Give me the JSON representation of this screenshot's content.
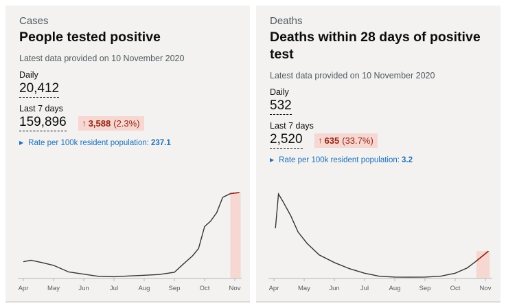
{
  "cards": [
    {
      "category": "Cases",
      "title": "People tested positive",
      "updated": "Latest data provided on 10 November 2020",
      "daily_label": "Daily",
      "daily_value": "20,412",
      "weekly_label": "Last 7 days",
      "weekly_value": "159,896",
      "change_arrow": "↑",
      "change_value": "3,588",
      "change_percent": "(2.3%)",
      "rate_label": "Rate per 100k resident population:",
      "rate_value": "237.1"
    },
    {
      "category": "Deaths",
      "title": "Deaths within 28 days of positive test",
      "updated": "Latest data provided on 10 November 2020",
      "daily_label": "Daily",
      "daily_value": "532",
      "weekly_label": "Last 7 days",
      "weekly_value": "2,520",
      "change_arrow": "↑",
      "change_value": "635",
      "change_percent": "(33.7%)",
      "rate_label": "Rate per 100k resident population:",
      "rate_value": "3.2"
    }
  ],
  "colors": {
    "card_bg": "#f3f2f1",
    "line": "#333333",
    "highlight_fill": "#f6d7d2",
    "highlight_line": "#942514",
    "link": "#1d70b8"
  },
  "chart_data": [
    {
      "type": "line",
      "title": "People tested positive",
      "x": [
        "Apr",
        "Apr",
        "Apr",
        "May",
        "May",
        "Jun",
        "Jun",
        "Jul",
        "Jul",
        "Aug",
        "Aug",
        "Sep",
        "Sep",
        "Sep",
        "Oct",
        "Oct",
        "Oct",
        "Oct",
        "Oct",
        "Nov",
        "Nov"
      ],
      "x_index": [
        0,
        0.25,
        0.6,
        1,
        1.5,
        2,
        2.5,
        3,
        3.5,
        4,
        4.5,
        5,
        5.3,
        5.6,
        5.8,
        6.0,
        6.2,
        6.4,
        6.6,
        6.85,
        7.15
      ],
      "values": [
        4400,
        4800,
        4200,
        3400,
        1600,
        1000,
        400,
        300,
        500,
        700,
        900,
        1500,
        3800,
        6000,
        8000,
        14000,
        15500,
        17800,
        22000,
        23000,
        23300
      ],
      "ylim": [
        0,
        25000
      ],
      "tick_labels": [
        "Apr",
        "May",
        "Jun",
        "Jul",
        "Aug",
        "Sep",
        "Oct",
        "Nov"
      ],
      "highlight_last_days": 7,
      "grid": false
    },
    {
      "type": "line",
      "title": "Deaths within 28 days of positive test",
      "x": [
        "Apr",
        "Apr",
        "Apr",
        "Apr",
        "May",
        "May",
        "May",
        "Jun",
        "Jun",
        "Jul",
        "Jul",
        "Aug",
        "Aug",
        "Sep",
        "Sep",
        "Oct",
        "Oct",
        "Oct",
        "Nov"
      ],
      "x_index": [
        0.05,
        0.15,
        0.3,
        0.55,
        0.8,
        1.1,
        1.5,
        2.0,
        2.5,
        3.0,
        3.5,
        4.0,
        4.5,
        5.0,
        5.5,
        6.0,
        6.4,
        6.7,
        7.1
      ],
      "values": [
        650,
        1100,
        1000,
        820,
        600,
        450,
        300,
        200,
        120,
        60,
        20,
        10,
        8,
        10,
        20,
        60,
        130,
        220,
        350
      ],
      "ylim": [
        0,
        1200
      ],
      "tick_labels": [
        "Apr",
        "May",
        "Jun",
        "Jul",
        "Aug",
        "Sep",
        "Oct",
        "Nov"
      ],
      "highlight_last_days": 7,
      "grid": false
    }
  ]
}
